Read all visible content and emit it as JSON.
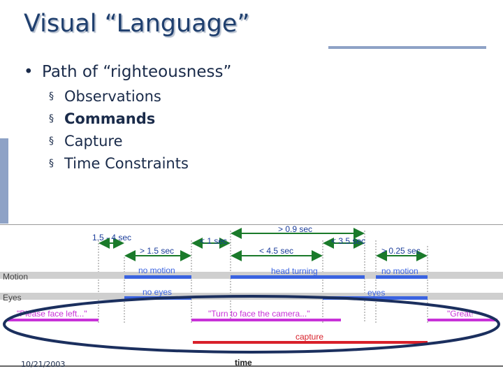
{
  "slide": {
    "title": "Visual “Language”",
    "bullet": "Path of “righteousness”",
    "sub_items": [
      {
        "label": "Observations",
        "bold": false
      },
      {
        "label": "Commands",
        "bold": true
      },
      {
        "label": "Capture",
        "bold": false
      },
      {
        "label": "Time Constraints",
        "bold": false
      }
    ],
    "date": "10/21/2003",
    "bullet_glyph": "•",
    "sub_glyph": "§"
  },
  "timeline": {
    "track_labels": {
      "motion": "Motion",
      "eyes": "Eyes"
    },
    "axis_label": "time",
    "intervals": [
      {
        "text": "1.5 - 4 sec",
        "row": "top"
      },
      {
        "text": "> 0.9 sec",
        "row": "top"
      },
      {
        "text": "< 1 sec",
        "row": "mid"
      },
      {
        "text": "< 3.5 sec",
        "row": "mid"
      },
      {
        "text": "> 1.5 sec",
        "row": "low"
      },
      {
        "text": "< 4.5 sec",
        "row": "low"
      },
      {
        "text": "> 0.25 sec",
        "row": "low"
      }
    ],
    "motion_segments": [
      "no motion",
      "head turning",
      "no motion"
    ],
    "eyes_segments": [
      "no eyes",
      "eyes"
    ],
    "commands": [
      "\"Please face left...\"",
      "\"Turn to face the camera...\"",
      "\"Great!\""
    ],
    "capture_label": "capture",
    "colors": {
      "motion_blue": "#3a63e0",
      "command_purple": "#c832d8",
      "capture_red": "#d8202a",
      "track_gray": "#cfcfcf",
      "ellipse": "#1b2f5e"
    }
  }
}
